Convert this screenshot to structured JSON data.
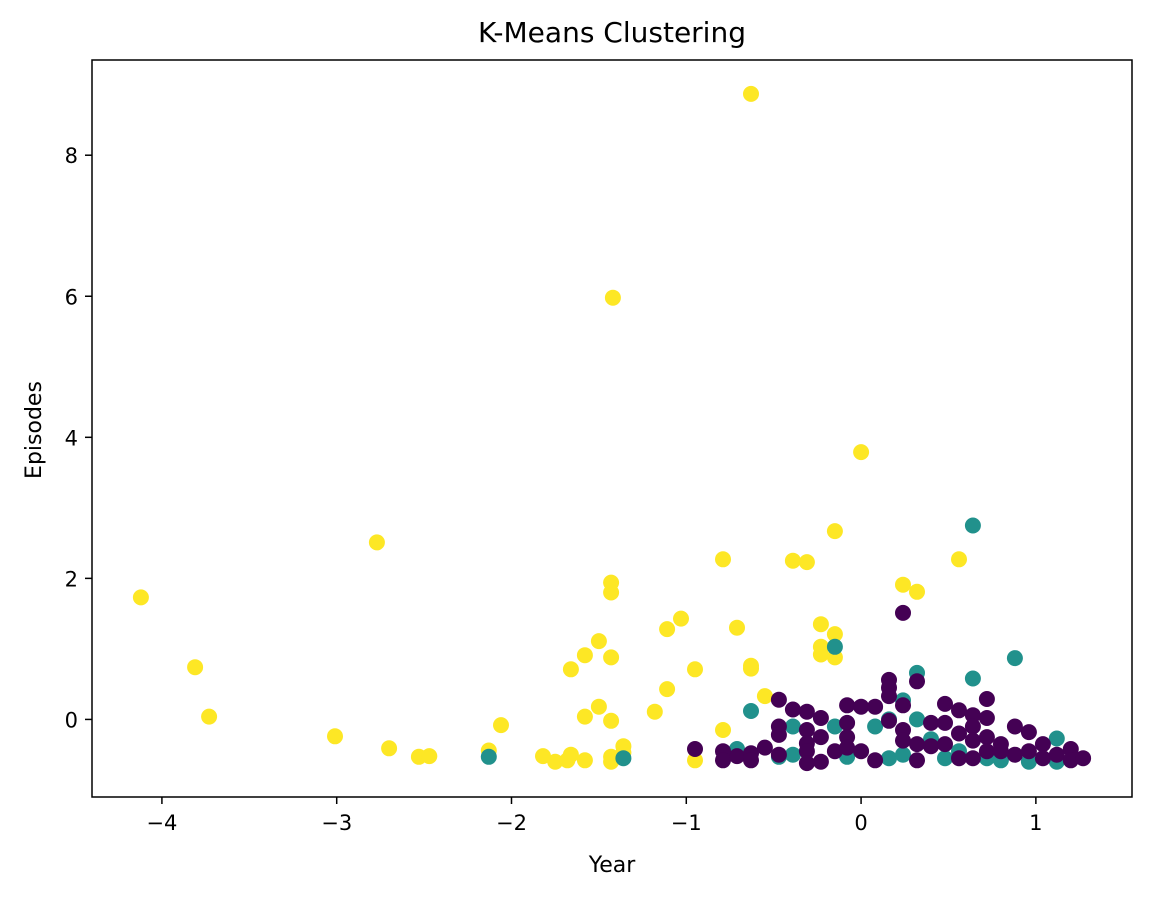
{
  "chart_data": {
    "type": "scatter",
    "title": "K-Means Clustering",
    "xlabel": "Year",
    "ylabel": "Episodes",
    "xlim": [
      -4.4,
      1.55
    ],
    "ylim": [
      -1.1,
      9.35
    ],
    "xticks": [
      -4,
      -3,
      -2,
      -1,
      0,
      1
    ],
    "yticks": [
      0,
      2,
      4,
      6,
      8
    ],
    "xtick_labels": [
      "−4",
      "−3",
      "−2",
      "−1",
      "0",
      "1"
    ],
    "ytick_labels": [
      "0",
      "2",
      "4",
      "6",
      "8"
    ],
    "grid": false,
    "legend": "none",
    "series": [
      {
        "color": "#fde725",
        "points": [
          [
            -0.63,
            8.87
          ],
          [
            -1.42,
            5.98
          ],
          [
            0.0,
            3.79
          ],
          [
            -2.77,
            2.51
          ],
          [
            -4.12,
            1.73
          ],
          [
            -3.81,
            0.74
          ],
          [
            -3.73,
            0.04
          ],
          [
            -3.01,
            -0.24
          ],
          [
            -2.7,
            -0.41
          ],
          [
            -2.53,
            -0.53
          ],
          [
            -2.47,
            -0.52
          ],
          [
            -2.13,
            -0.44
          ],
          [
            -2.06,
            -0.08
          ],
          [
            -1.82,
            -0.52
          ],
          [
            -1.75,
            -0.6
          ],
          [
            -1.68,
            -0.58
          ],
          [
            -1.66,
            -0.5
          ],
          [
            -1.66,
            0.71
          ],
          [
            -1.58,
            0.91
          ],
          [
            -1.58,
            0.04
          ],
          [
            -1.58,
            -0.58
          ],
          [
            -1.5,
            1.11
          ],
          [
            -1.5,
            0.18
          ],
          [
            -1.43,
            1.94
          ],
          [
            -1.43,
            1.8
          ],
          [
            -1.43,
            0.88
          ],
          [
            -1.43,
            -0.02
          ],
          [
            -1.43,
            -0.53
          ],
          [
            -1.43,
            -0.6
          ],
          [
            -1.36,
            -0.38
          ],
          [
            -1.36,
            -0.47
          ],
          [
            -1.18,
            0.11
          ],
          [
            -1.11,
            1.28
          ],
          [
            -1.11,
            0.43
          ],
          [
            -1.03,
            1.43
          ],
          [
            -0.95,
            0.71
          ],
          [
            -0.95,
            -0.58
          ],
          [
            -0.79,
            2.27
          ],
          [
            -0.79,
            -0.15
          ],
          [
            -0.71,
            1.3
          ],
          [
            -0.63,
            0.76
          ],
          [
            -0.63,
            0.72
          ],
          [
            -0.55,
            0.33
          ],
          [
            -0.39,
            2.25
          ],
          [
            -0.31,
            2.23
          ],
          [
            -0.23,
            1.35
          ],
          [
            -0.23,
            1.03
          ],
          [
            -0.23,
            0.92
          ],
          [
            -0.15,
            2.67
          ],
          [
            -0.15,
            1.21
          ],
          [
            -0.15,
            0.88
          ],
          [
            0.24,
            1.91
          ],
          [
            0.32,
            1.81
          ],
          [
            0.56,
            2.27
          ]
        ]
      },
      {
        "color": "#21918c",
        "points": [
          [
            0.64,
            2.75
          ],
          [
            0.88,
            0.87
          ],
          [
            0.32,
            0.66
          ],
          [
            0.64,
            0.58
          ],
          [
            -0.63,
            0.12
          ],
          [
            -0.15,
            1.03
          ],
          [
            0.24,
            0.27
          ],
          [
            0.16,
            0.0
          ],
          [
            0.32,
            0.0
          ],
          [
            -0.39,
            -0.1
          ],
          [
            -0.15,
            -0.1
          ],
          [
            0.08,
            -0.1
          ],
          [
            -0.71,
            -0.42
          ],
          [
            -0.47,
            -0.53
          ],
          [
            -0.39,
            -0.5
          ],
          [
            -0.08,
            -0.53
          ],
          [
            0.16,
            -0.55
          ],
          [
            0.24,
            -0.5
          ],
          [
            0.4,
            -0.28
          ],
          [
            0.48,
            -0.55
          ],
          [
            0.72,
            -0.55
          ],
          [
            0.8,
            -0.58
          ],
          [
            0.96,
            -0.6
          ],
          [
            1.12,
            -0.27
          ],
          [
            1.12,
            -0.6
          ],
          [
            -2.13,
            -0.53
          ],
          [
            -1.36,
            -0.55
          ],
          [
            0.56,
            -0.45
          ]
        ]
      },
      {
        "color": "#440154",
        "points": [
          [
            0.24,
            1.51
          ],
          [
            0.16,
            0.56
          ],
          [
            0.16,
            0.45
          ],
          [
            0.16,
            0.33
          ],
          [
            0.32,
            0.54
          ],
          [
            -0.47,
            0.28
          ],
          [
            -0.39,
            0.14
          ],
          [
            -0.31,
            0.11
          ],
          [
            -0.23,
            0.02
          ],
          [
            -0.08,
            0.2
          ],
          [
            0.0,
            0.18
          ],
          [
            0.08,
            0.18
          ],
          [
            0.24,
            0.2
          ],
          [
            0.72,
            0.29
          ],
          [
            0.48,
            0.22
          ],
          [
            0.56,
            0.13
          ],
          [
            0.64,
            0.06
          ],
          [
            0.72,
            0.02
          ],
          [
            -0.47,
            -0.1
          ],
          [
            -0.47,
            -0.22
          ],
          [
            -0.31,
            -0.15
          ],
          [
            -0.31,
            -0.34
          ],
          [
            -0.23,
            -0.25
          ],
          [
            -0.08,
            -0.05
          ],
          [
            -0.08,
            -0.25
          ],
          [
            0.16,
            -0.02
          ],
          [
            0.24,
            -0.15
          ],
          [
            0.24,
            -0.3
          ],
          [
            0.4,
            -0.05
          ],
          [
            0.48,
            -0.05
          ],
          [
            0.56,
            -0.2
          ],
          [
            0.64,
            -0.1
          ],
          [
            0.72,
            -0.25
          ],
          [
            0.88,
            -0.1
          ],
          [
            0.96,
            -0.18
          ],
          [
            -0.95,
            -0.42
          ],
          [
            -0.79,
            -0.45
          ],
          [
            -0.79,
            -0.58
          ],
          [
            -0.71,
            -0.52
          ],
          [
            -0.63,
            -0.48
          ],
          [
            -0.63,
            -0.58
          ],
          [
            -0.55,
            -0.4
          ],
          [
            -0.47,
            -0.5
          ],
          [
            -0.31,
            -0.45
          ],
          [
            -0.31,
            -0.62
          ],
          [
            -0.23,
            -0.6
          ],
          [
            -0.15,
            -0.45
          ],
          [
            -0.08,
            -0.4
          ],
          [
            0.0,
            -0.45
          ],
          [
            0.08,
            -0.58
          ],
          [
            0.32,
            -0.35
          ],
          [
            0.32,
            -0.58
          ],
          [
            0.4,
            -0.38
          ],
          [
            0.48,
            -0.35
          ],
          [
            0.56,
            -0.55
          ],
          [
            0.64,
            -0.55
          ],
          [
            0.72,
            -0.45
          ],
          [
            0.8,
            -0.35
          ],
          [
            0.88,
            -0.5
          ],
          [
            0.96,
            -0.45
          ],
          [
            1.04,
            -0.35
          ],
          [
            1.04,
            -0.55
          ],
          [
            1.12,
            -0.5
          ],
          [
            1.2,
            -0.42
          ],
          [
            1.2,
            -0.58
          ],
          [
            1.27,
            -0.55
          ],
          [
            0.64,
            -0.3
          ],
          [
            0.8,
            -0.45
          ]
        ]
      }
    ]
  }
}
